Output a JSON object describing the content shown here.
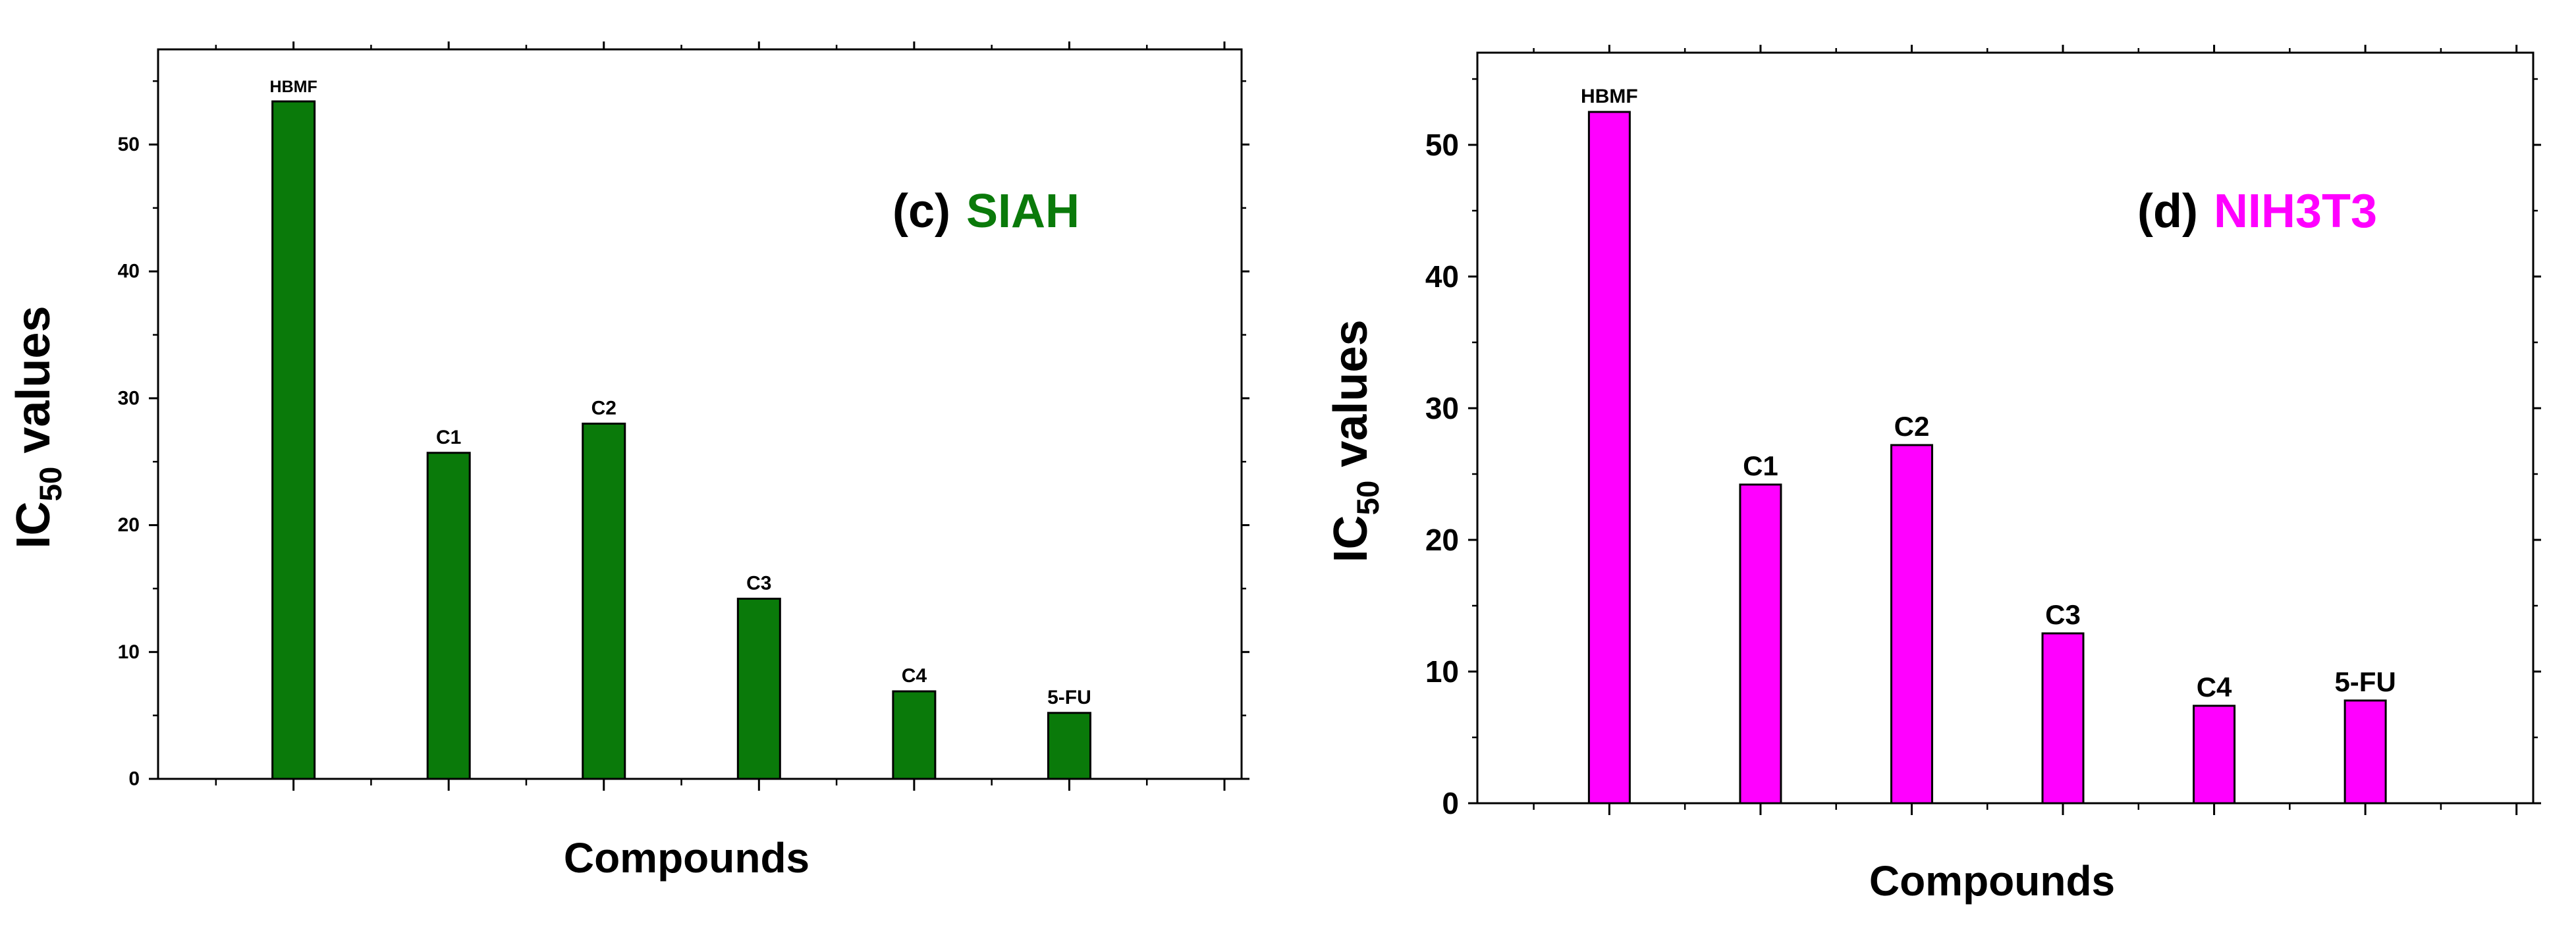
{
  "chart_data": [
    {
      "type": "bar",
      "panel_label": "(c)",
      "panel_cell": "SIAH",
      "bar_color": "#0a7a0a",
      "cell_color": "#0a7a0a",
      "categories": [
        "HBMF",
        "C1",
        "C2",
        "C3",
        "C4",
        "5-FU"
      ],
      "values": [
        53.4,
        25.7,
        28.0,
        14.2,
        6.9,
        5.2
      ],
      "xlabel": "Compounds",
      "ylabel": "IC",
      "ylabel_sub": "50",
      "ylabel_rest": " values",
      "ylim": [
        0,
        57.5
      ],
      "y_ticks": [
        0,
        10,
        20,
        30,
        40,
        50
      ],
      "y_tick_labels": [
        "0",
        "10",
        "20",
        "30",
        "40",
        "50"
      ]
    },
    {
      "type": "bar",
      "panel_label": "(d)",
      "panel_cell": "NIH3T3",
      "bar_color": "#ff00ff",
      "cell_color": "#ff00ff",
      "categories": [
        "HBMF",
        "C1",
        "C2",
        "C3",
        "C4",
        "5-FU"
      ],
      "values": [
        52.5,
        24.2,
        27.2,
        12.9,
        7.4,
        7.8
      ],
      "xlabel": "Compounds",
      "ylabel": "IC",
      "ylabel_sub": "50",
      "ylabel_rest": " values",
      "ylim": [
        0,
        57
      ],
      "y_ticks": [
        0,
        10,
        20,
        30,
        40,
        50
      ],
      "y_tick_labels": [
        "0",
        "10",
        "20",
        "30",
        "40",
        "50"
      ]
    }
  ]
}
